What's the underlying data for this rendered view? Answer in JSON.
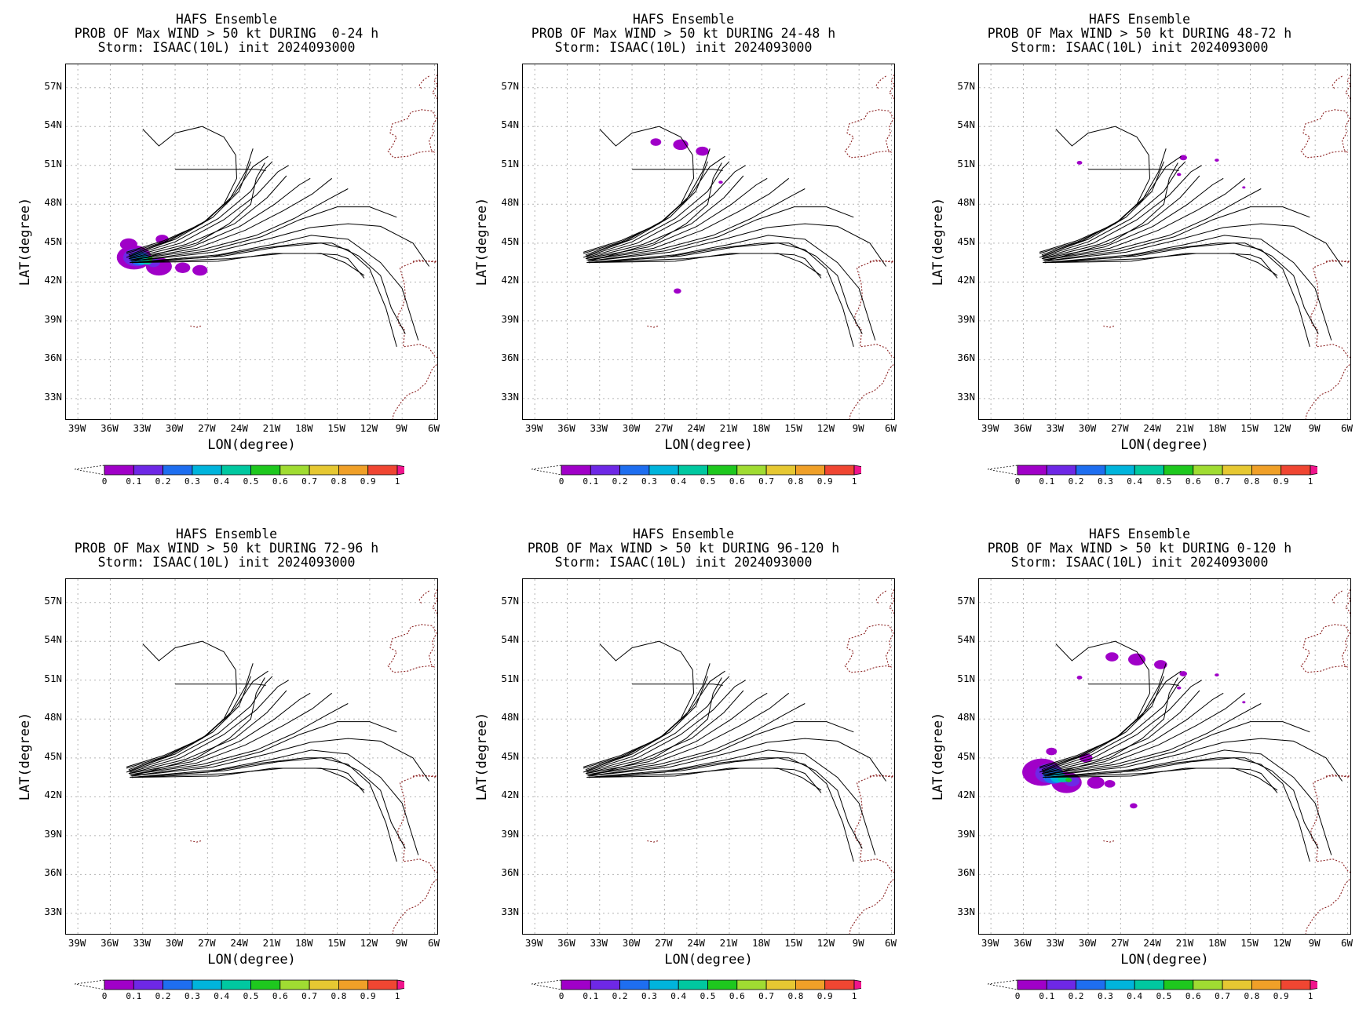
{
  "panels": [
    {
      "line1": "HAFS Ensemble",
      "line2": "PROB OF Max WIND > 50 kt DURING  0-24 h",
      "line3": "Storm: ISAAC(10L) init 2024093000",
      "blobs": "p1"
    },
    {
      "line1": "HAFS Ensemble",
      "line2": "PROB OF Max WIND > 50 kt DURING 24-48 h",
      "line3": "Storm: ISAAC(10L) init 2024093000",
      "blobs": "p2"
    },
    {
      "line1": "HAFS Ensemble",
      "line2": "PROB OF Max WIND > 50 kt DURING 48-72 h",
      "line3": "Storm: ISAAC(10L) init 2024093000",
      "blobs": "p3"
    },
    {
      "line1": "HAFS Ensemble",
      "line2": "PROB OF Max WIND > 50 kt DURING 72-96 h",
      "line3": "Storm: ISAAC(10L) init 2024093000",
      "blobs": "none"
    },
    {
      "line1": "HAFS Ensemble",
      "line2": "PROB OF Max WIND > 50 kt DURING 96-120 h",
      "line3": "Storm: ISAAC(10L) init 2024093000",
      "blobs": "none"
    },
    {
      "line1": "HAFS Ensemble",
      "line2": "PROB OF Max WIND > 50 kt DURING 0-120 h",
      "line3": "Storm: ISAAC(10L) init 2024093000",
      "blobs": "p6"
    }
  ],
  "axes": {
    "xlabel": "LON(degree)",
    "ylabel": "LAT(degree)",
    "lat_ticks": [
      "57N",
      "54N",
      "51N",
      "48N",
      "45N",
      "42N",
      "39N",
      "36N",
      "33N"
    ],
    "lon_ticks": [
      "39W",
      "36W",
      "33W",
      "30W",
      "27W",
      "24W",
      "21W",
      "18W",
      "15W",
      "12W",
      "9W",
      "6W"
    ]
  },
  "colorbar": {
    "labels": [
      "0",
      "0.1",
      "0.2",
      "0.3",
      "0.4",
      "0.5",
      "0.6",
      "0.7",
      "0.8",
      "0.9",
      "1"
    ],
    "colors": [
      "#a000c8",
      "#6e28e6",
      "#1e6ef0",
      "#00b4dc",
      "#00c8a0",
      "#1ec81e",
      "#a0dc32",
      "#e6c832",
      "#f0a028",
      "#f04632"
    ],
    "over_color": "#f0148c"
  },
  "colors": {
    "track": "#000000",
    "coast": "#8b2020",
    "grid": "#b4b4b4"
  }
}
